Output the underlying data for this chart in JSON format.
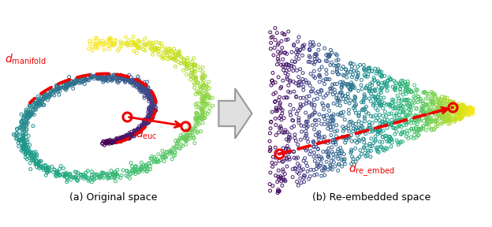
{
  "fig_width": 6.24,
  "fig_height": 2.88,
  "dpi": 100,
  "n_points": 1500,
  "seed": 7,
  "bg_color": "#ffffff",
  "marker_size": 8,
  "marker_lw": 0.7,
  "label_a": "(a) Original space",
  "label_b": "(b) Re-embedded space",
  "red_color": "#ee0000",
  "cmap": "viridis"
}
